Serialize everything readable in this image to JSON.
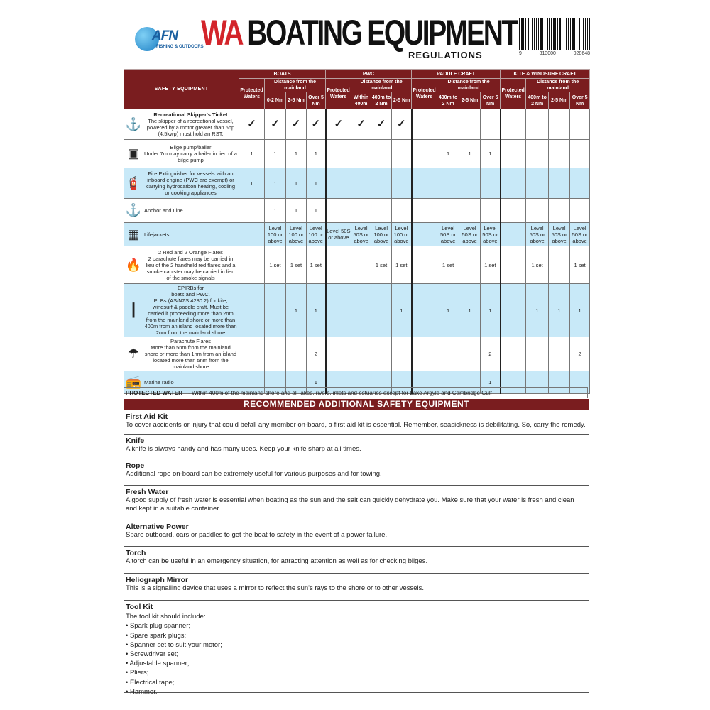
{
  "header": {
    "logo_text": "AFN",
    "logo_sub": "FISHING & OUTDOORS",
    "title_red": "WA",
    "title_black": "BOATING EQUIPMENT",
    "subtitle": "REGULATIONS",
    "barcode_digits": [
      "9",
      "313000",
      "028648"
    ]
  },
  "table": {
    "main_header": "SAFETY EQUIPMENT",
    "groups": [
      "BOATS",
      "PWC",
      "PADDLE CRAFT",
      "KITE & WINDSURF CRAFT"
    ],
    "protected_label": "Protected Waters",
    "distance_label": "Distance from the mainland",
    "subcols": [
      [
        "0-2 Nm",
        "2-5 Nm",
        "Over 5 Nm"
      ],
      [
        "Within 400m",
        "400m to 2 Nm",
        "2-5 Nm"
      ],
      [
        "400m to 2 Nm",
        "2-5 Nm",
        "Over 5 Nm"
      ],
      [
        "400m to 2 Nm",
        "2-5 Nm",
        "Over 5 Nm"
      ]
    ],
    "rows": [
      {
        "icon": "skipper-ticket-icon",
        "glyph": "⚓",
        "title": "Recreational Skipper's Ticket",
        "text": "The skipper of a recreational vessel, powered by a motor greater than 6hp (4.5kwp) must hold an RST.",
        "blue": false,
        "cells": [
          "✓",
          "✓",
          "✓",
          "✓",
          "✓",
          "✓",
          "✓",
          "✓",
          "",
          "",
          "",
          "",
          "",
          "",
          "",
          ""
        ]
      },
      {
        "icon": "bilge-pump-icon",
        "glyph": "▣",
        "title": "",
        "text": "Bilge pump/bailer\nUnder 7m may carry a bailer in lieu of a bilge pump",
        "blue": false,
        "cells": [
          "1",
          "1",
          "1",
          "1",
          "",
          "",
          "",
          "",
          "",
          "1",
          "1",
          "1",
          "",
          "",
          "",
          ""
        ]
      },
      {
        "icon": "fire-extinguisher-icon",
        "glyph": "🧯",
        "title": "",
        "text": "Fire Extinguisher for vessels with an inboard engine (PWC are exempt) or carrying hydrocarbon heating, cooling or cooking appliances",
        "blue": true,
        "cells": [
          "1",
          "1",
          "1",
          "1",
          "",
          "",
          "",
          "",
          "",
          "",
          "",
          "",
          "",
          "",
          "",
          ""
        ]
      },
      {
        "icon": "anchor-icon",
        "glyph": "⚓",
        "title": "",
        "text": "Anchor and Line",
        "blue": false,
        "cells": [
          "",
          "1",
          "1",
          "1",
          "",
          "",
          "",
          "",
          "",
          "",
          "",
          "",
          "",
          "",
          "",
          ""
        ]
      },
      {
        "icon": "lifejacket-icon",
        "glyph": "▦",
        "title": "",
        "text": "Lifejackets",
        "blue": true,
        "cells": [
          "",
          "Level 100 or above",
          "Level 100 or above",
          "Level 100 or above",
          "Level 50S or above",
          "Level 50S or above",
          "Level 100 or above",
          "Level 100 or above",
          "",
          "Level 50S or above",
          "Level 50S or above",
          "Level 50S or above",
          "",
          "Level 50S or above",
          "Level 50S or above",
          "Level 50S or above"
        ]
      },
      {
        "icon": "flare-icon",
        "glyph": "🔥",
        "title": "",
        "text": "2 Red and 2 Orange Flares\n2 parachute flares may be carried in lieu of the 2 handheld red flares and a smoke canister may be carried in lieu of the smoke signals",
        "blue": false,
        "cells": [
          "",
          "1 set",
          "1 set",
          "1 set",
          "",
          "",
          "1 set",
          "1 set",
          "",
          "1 set",
          "",
          "1 set",
          "",
          "1 set",
          "",
          "1 set"
        ]
      },
      {
        "icon": "epirb-icon",
        "glyph": "┃",
        "title": "",
        "text": "EPIRBs for\nboats and PWC.\nPLBs (AS/NZS 4280.2) for kite, windsurf & paddle craft.  Must be carried if proceeding more than 2nm from the mainland shore or more than 400m from an island located more than 2nm from the mainland shore",
        "blue": true,
        "cells": [
          "",
          "",
          "1",
          "1",
          "",
          "",
          "",
          "1",
          "",
          "1",
          "1",
          "1",
          "",
          "1",
          "1",
          "1"
        ]
      },
      {
        "icon": "parachute-flare-icon",
        "glyph": "☂",
        "title": "",
        "text": "Parachute Flares\nMore than 5nm from the mainland shore or more than 1nm from an island located more than 5nm from the mainland shore",
        "blue": false,
        "cells": [
          "",
          "",
          "",
          "2",
          "",
          "",
          "",
          "",
          "",
          "",
          "",
          "2",
          "",
          "",
          "",
          "2"
        ]
      },
      {
        "icon": "marine-radio-icon",
        "glyph": "📻",
        "title": "",
        "text": "Marine radio",
        "blue": true,
        "cells": [
          "",
          "",
          "",
          "1",
          "",
          "",
          "",
          "",
          "",
          "",
          "",
          "1",
          "",
          "",
          "",
          ""
        ]
      }
    ]
  },
  "protected_water": {
    "label": "PROTECTED WATER",
    "text": "- Within 400m of the mainland shore and all lakes, rivers, inlets and estuaries except for Lake Argyle and Cambridge Gulf"
  },
  "recommended": {
    "title": "RECOMMENDED ADDITIONAL SAFETY EQUIPMENT",
    "items": [
      {
        "title": "First Aid Kit",
        "text": "To cover accidents or injury that could befall any member on-board, a first aid kit is essential. Remember, seasickness is debilitating. So, carry the remedy."
      },
      {
        "title": "Knife",
        "text": "A knife is always handy and has many uses. Keep your knife sharp at all times."
      },
      {
        "title": "Rope",
        "text": "Additional rope on-board can be extremely useful for various purposes and for towing."
      },
      {
        "title": "Fresh Water",
        "text": "A good supply of fresh water is essential when boating as the sun and the salt can quickly dehydrate you. Make sure that your water is fresh and clean and kept in a suitable container."
      },
      {
        "title": "Alternative Power",
        "text": "Spare outboard, oars or paddles to get the boat to safety in the event of a power failure."
      },
      {
        "title": "Torch",
        "text": "A torch can be useful in an emergency situation, for attracting attention as well as for checking bilges."
      },
      {
        "title": "Heliograph Mirror",
        "text": "This is a signalling device that uses a mirror to reflect the sun's rays to the shore or to other vessels."
      }
    ],
    "toolkit": {
      "title": "Tool Kit",
      "intro": "The tool kit should include:",
      "list": [
        "• Spark plug spanner;",
        "• Spare spark plugs;",
        "• Spanner set to suit your motor;",
        "• Screwdriver set;",
        "• Adjustable spanner;",
        "• Pliers;",
        "• Electrical tape;",
        "• Hammer."
      ]
    }
  }
}
